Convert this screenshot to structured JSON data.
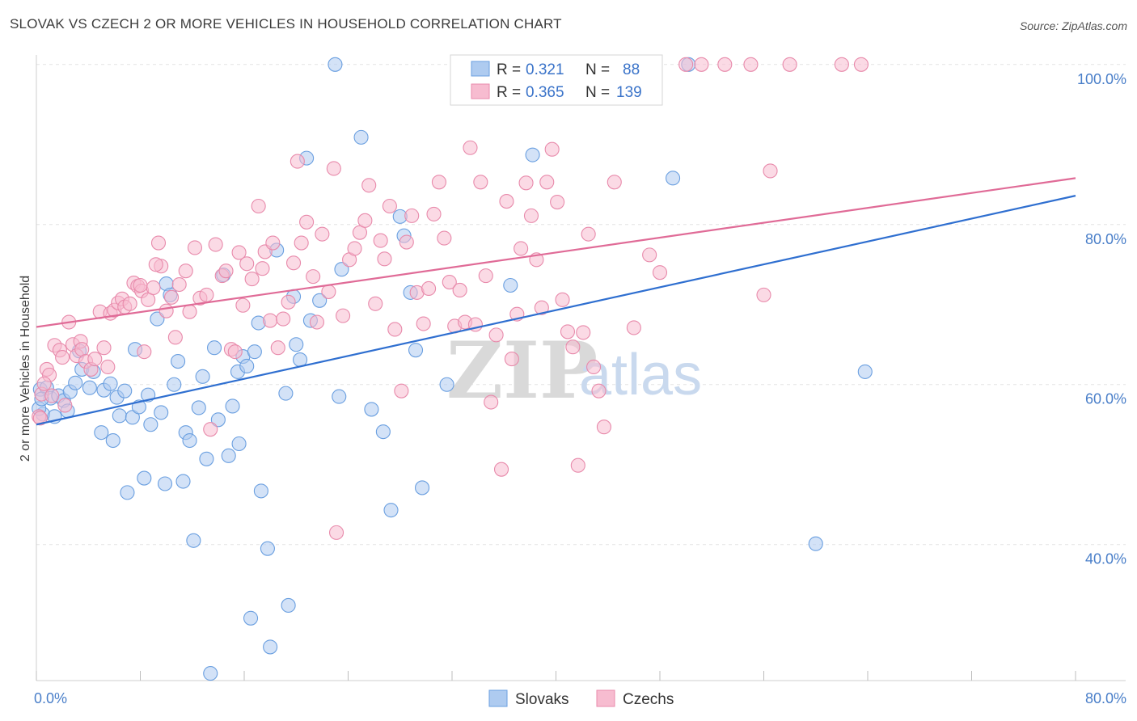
{
  "title": "SLOVAK VS CZECH 2 OR MORE VEHICLES IN HOUSEHOLD CORRELATION CHART",
  "source": "Source: ZipAtlas.com",
  "watermark": {
    "zip": "ZIP",
    "atlas": "atlas"
  },
  "legend_box": {
    "rows": [
      {
        "r_label": "R =",
        "r_value": "0.321",
        "n_label": "N =",
        "n_value": "88",
        "fill": "#aecbf0",
        "stroke": "#6a9fe0"
      },
      {
        "r_label": "R =",
        "r_value": "0.365",
        "n_label": "N =",
        "n_value": "139",
        "fill": "#f7bcd0",
        "stroke": "#e88aab"
      }
    ]
  },
  "bottom_legend": [
    {
      "label": "Slovaks",
      "fill": "#aecbf0",
      "stroke": "#6a9fe0"
    },
    {
      "label": "Czechs",
      "fill": "#f7bcd0",
      "stroke": "#e88aab"
    }
  ],
  "chart_data": {
    "type": "scatter",
    "title": "SLOVAK VS CZECH 2 OR MORE VEHICLES IN HOUSEHOLD CORRELATION CHART",
    "xlabel": "",
    "ylabel": "2 or more Vehicles in Household",
    "xlim": [
      0,
      80
    ],
    "ylim": [
      23,
      102
    ],
    "x_tick_labels": [
      {
        "value": 0,
        "label": "0.0%"
      },
      {
        "value": 80,
        "label": "80.0%"
      }
    ],
    "y_tick_labels": [
      {
        "value": 100,
        "label": "100.0%"
      },
      {
        "value": 80,
        "label": "80.0%"
      },
      {
        "value": 60,
        "label": "60.0%"
      },
      {
        "value": 40,
        "label": "40.0%"
      }
    ],
    "x_minor_ticks": [
      0,
      8,
      16,
      24,
      32,
      40,
      48,
      56,
      64,
      72,
      80
    ],
    "grid": true,
    "legend_position": "top-center",
    "series": [
      {
        "name": "Slovaks",
        "color": "#6a9fe0",
        "fill": "#aecbf0",
        "trend": {
          "x": [
            0,
            80
          ],
          "y": [
            55.0,
            83.6
          ],
          "color": "#2f6fd0"
        },
        "points": [
          [
            0.3,
            59.4
          ],
          [
            0.5,
            56.3
          ],
          [
            0.8,
            59.6
          ],
          [
            1.1,
            58.3
          ],
          [
            1.4,
            56.0
          ],
          [
            1.7,
            58.6
          ],
          [
            2.1,
            58.0
          ],
          [
            2.4,
            56.7
          ],
          [
            2.6,
            59.1
          ],
          [
            3.0,
            60.2
          ],
          [
            3.3,
            64.2
          ],
          [
            3.5,
            61.9
          ],
          [
            4.1,
            59.6
          ],
          [
            4.4,
            61.6
          ],
          [
            5.0,
            54.0
          ],
          [
            5.2,
            59.3
          ],
          [
            5.7,
            60.1
          ],
          [
            5.9,
            53.0
          ],
          [
            6.2,
            58.4
          ],
          [
            6.4,
            56.1
          ],
          [
            6.8,
            59.2
          ],
          [
            7.0,
            46.5
          ],
          [
            7.4,
            55.9
          ],
          [
            7.6,
            64.4
          ],
          [
            7.9,
            57.2
          ],
          [
            8.3,
            48.3
          ],
          [
            8.6,
            58.7
          ],
          [
            8.8,
            55.0
          ],
          [
            9.3,
            68.2
          ],
          [
            9.6,
            56.5
          ],
          [
            9.9,
            47.6
          ],
          [
            10.0,
            72.6
          ],
          [
            10.3,
            71.2
          ],
          [
            10.6,
            60.0
          ],
          [
            10.9,
            62.9
          ],
          [
            11.3,
            47.9
          ],
          [
            11.5,
            54.0
          ],
          [
            11.8,
            53.0
          ],
          [
            12.1,
            40.5
          ],
          [
            12.5,
            57.1
          ],
          [
            12.8,
            61.0
          ],
          [
            13.1,
            50.7
          ],
          [
            13.4,
            23.9
          ],
          [
            13.7,
            64.6
          ],
          [
            14.0,
            55.6
          ],
          [
            14.4,
            73.7
          ],
          [
            14.8,
            51.1
          ],
          [
            15.1,
            57.3
          ],
          [
            15.5,
            61.6
          ],
          [
            15.6,
            52.6
          ],
          [
            15.9,
            63.5
          ],
          [
            16.2,
            62.3
          ],
          [
            16.5,
            30.8
          ],
          [
            16.8,
            64.1
          ],
          [
            17.1,
            67.7
          ],
          [
            17.3,
            46.7
          ],
          [
            17.8,
            39.5
          ],
          [
            18.0,
            27.2
          ],
          [
            18.5,
            76.8
          ],
          [
            19.2,
            58.9
          ],
          [
            19.4,
            32.4
          ],
          [
            19.8,
            71.0
          ],
          [
            20.0,
            65.0
          ],
          [
            20.3,
            63.1
          ],
          [
            20.8,
            88.3
          ],
          [
            21.1,
            68.0
          ],
          [
            21.8,
            70.5
          ],
          [
            23.0,
            100.0
          ],
          [
            23.3,
            58.5
          ],
          [
            23.5,
            74.4
          ],
          [
            25.0,
            90.9
          ],
          [
            25.8,
            56.9
          ],
          [
            26.7,
            54.1
          ],
          [
            27.3,
            44.3
          ],
          [
            28.0,
            81.0
          ],
          [
            28.3,
            78.6
          ],
          [
            28.8,
            71.5
          ],
          [
            29.2,
            64.3
          ],
          [
            29.7,
            47.1
          ],
          [
            31.6,
            60.0
          ],
          [
            36.5,
            72.4
          ],
          [
            38.2,
            88.7
          ],
          [
            49.0,
            85.8
          ],
          [
            50.2,
            100.0
          ],
          [
            60.0,
            40.1
          ],
          [
            63.8,
            61.6
          ],
          [
            0.2,
            57.0
          ],
          [
            0.4,
            58.2
          ]
        ]
      },
      {
        "name": "Czechs",
        "color": "#e88aab",
        "fill": "#f7bcd0",
        "trend": {
          "x": [
            0,
            80
          ],
          "y": [
            67.2,
            85.8
          ],
          "color": "#e06b97"
        },
        "points": [
          [
            0.2,
            56.0
          ],
          [
            0.4,
            58.8
          ],
          [
            0.8,
            61.9
          ],
          [
            1.0,
            61.2
          ],
          [
            1.4,
            64.9
          ],
          [
            1.8,
            64.3
          ],
          [
            2.0,
            63.4
          ],
          [
            2.5,
            67.8
          ],
          [
            2.8,
            65.0
          ],
          [
            3.1,
            63.6
          ],
          [
            3.4,
            65.4
          ],
          [
            3.5,
            64.4
          ],
          [
            3.8,
            62.9
          ],
          [
            4.2,
            61.9
          ],
          [
            4.5,
            63.2
          ],
          [
            4.9,
            69.1
          ],
          [
            5.2,
            64.6
          ],
          [
            5.7,
            68.9
          ],
          [
            6.0,
            69.3
          ],
          [
            6.3,
            70.2
          ],
          [
            6.6,
            70.7
          ],
          [
            6.8,
            69.7
          ],
          [
            7.2,
            70.1
          ],
          [
            7.5,
            72.7
          ],
          [
            7.8,
            72.3
          ],
          [
            8.1,
            71.7
          ],
          [
            8.3,
            64.1
          ],
          [
            8.6,
            70.6
          ],
          [
            9.0,
            72.1
          ],
          [
            9.4,
            77.7
          ],
          [
            9.6,
            74.8
          ],
          [
            10.0,
            69.2
          ],
          [
            10.4,
            70.9
          ],
          [
            10.7,
            65.9
          ],
          [
            11.0,
            72.5
          ],
          [
            11.5,
            74.2
          ],
          [
            11.8,
            69.1
          ],
          [
            12.2,
            77.1
          ],
          [
            12.6,
            70.8
          ],
          [
            13.1,
            71.2
          ],
          [
            13.4,
            54.4
          ],
          [
            13.8,
            77.5
          ],
          [
            14.3,
            73.6
          ],
          [
            14.6,
            74.2
          ],
          [
            15.0,
            64.4
          ],
          [
            15.3,
            64.1
          ],
          [
            15.6,
            76.5
          ],
          [
            15.9,
            69.9
          ],
          [
            16.2,
            75.1
          ],
          [
            16.6,
            73.2
          ],
          [
            17.1,
            82.3
          ],
          [
            17.4,
            74.5
          ],
          [
            17.6,
            76.6
          ],
          [
            18.0,
            68.0
          ],
          [
            18.2,
            77.7
          ],
          [
            18.6,
            64.6
          ],
          [
            19.0,
            68.2
          ],
          [
            19.4,
            70.3
          ],
          [
            19.8,
            75.2
          ],
          [
            20.1,
            87.9
          ],
          [
            20.4,
            77.7
          ],
          [
            20.8,
            80.3
          ],
          [
            21.3,
            73.5
          ],
          [
            21.6,
            67.8
          ],
          [
            22.0,
            78.8
          ],
          [
            22.5,
            71.6
          ],
          [
            22.9,
            87.0
          ],
          [
            23.1,
            41.5
          ],
          [
            23.6,
            68.6
          ],
          [
            24.1,
            75.6
          ],
          [
            24.5,
            77.0
          ],
          [
            24.9,
            79.0
          ],
          [
            25.3,
            80.5
          ],
          [
            25.6,
            84.9
          ],
          [
            26.1,
            70.1
          ],
          [
            26.5,
            78.0
          ],
          [
            26.8,
            75.7
          ],
          [
            27.2,
            82.3
          ],
          [
            27.6,
            66.9
          ],
          [
            28.1,
            59.2
          ],
          [
            28.5,
            77.8
          ],
          [
            28.9,
            81.1
          ],
          [
            29.3,
            71.5
          ],
          [
            29.8,
            67.6
          ],
          [
            30.2,
            72.0
          ],
          [
            30.6,
            81.3
          ],
          [
            31.0,
            85.3
          ],
          [
            31.4,
            78.3
          ],
          [
            31.8,
            72.8
          ],
          [
            32.2,
            67.3
          ],
          [
            32.6,
            71.8
          ],
          [
            33.0,
            67.8
          ],
          [
            33.4,
            89.6
          ],
          [
            33.8,
            67.5
          ],
          [
            34.2,
            85.3
          ],
          [
            34.6,
            73.6
          ],
          [
            35.0,
            57.8
          ],
          [
            35.4,
            66.2
          ],
          [
            35.8,
            49.4
          ],
          [
            36.2,
            82.9
          ],
          [
            36.6,
            63.2
          ],
          [
            37.0,
            68.8
          ],
          [
            37.3,
            77.0
          ],
          [
            37.7,
            85.2
          ],
          [
            38.1,
            81.1
          ],
          [
            38.5,
            75.6
          ],
          [
            38.9,
            69.6
          ],
          [
            39.3,
            85.3
          ],
          [
            39.7,
            89.4
          ],
          [
            40.1,
            82.8
          ],
          [
            40.5,
            70.6
          ],
          [
            40.9,
            66.6
          ],
          [
            41.3,
            64.7
          ],
          [
            41.7,
            49.9
          ],
          [
            42.1,
            66.5
          ],
          [
            42.5,
            78.8
          ],
          [
            42.9,
            62.2
          ],
          [
            43.3,
            59.2
          ],
          [
            43.7,
            54.7
          ],
          [
            44.5,
            85.3
          ],
          [
            46.0,
            67.1
          ],
          [
            47.2,
            76.2
          ],
          [
            48.0,
            74.0
          ],
          [
            50.0,
            100.0
          ],
          [
            51.2,
            100.0
          ],
          [
            53.0,
            100.0
          ],
          [
            55.0,
            100.0
          ],
          [
            56.0,
            71.2
          ],
          [
            56.5,
            86.7
          ],
          [
            62.0,
            100.0
          ],
          [
            63.5,
            100.0
          ],
          [
            58.0,
            100.0
          ],
          [
            0.3,
            55.8
          ],
          [
            0.6,
            60.1
          ],
          [
            1.2,
            58.6
          ],
          [
            2.2,
            57.4
          ],
          [
            5.5,
            62.2
          ],
          [
            8.0,
            72.4
          ],
          [
            9.2,
            75.0
          ]
        ]
      }
    ]
  }
}
